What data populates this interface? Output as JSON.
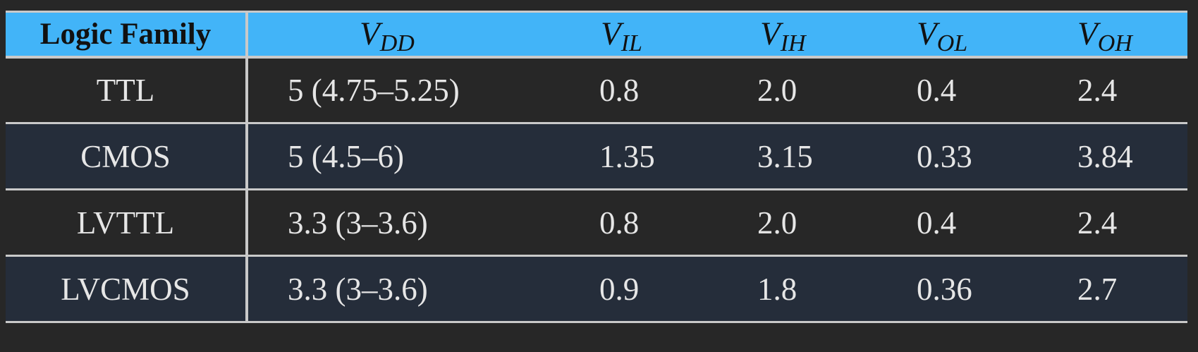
{
  "table": {
    "header": {
      "family": "Logic Family",
      "columns": [
        {
          "main": "V",
          "sub": "DD"
        },
        {
          "main": "V",
          "sub": "IL"
        },
        {
          "main": "V",
          "sub": "IH"
        },
        {
          "main": "V",
          "sub": "OL"
        },
        {
          "main": "V",
          "sub": "OH"
        }
      ]
    },
    "rows": [
      {
        "family": "TTL",
        "vdd": "5 (4.75–5.25)",
        "vil": "0.8",
        "vih": "2.0",
        "vol": "0.4",
        "voh": "2.4"
      },
      {
        "family": "CMOS",
        "vdd": "5 (4.5–6)",
        "vil": "1.35",
        "vih": "3.15",
        "vol": "0.33",
        "voh": "3.84"
      },
      {
        "family": "LVTTL",
        "vdd": "3.3 (3–3.6)",
        "vil": "0.8",
        "vih": "2.0",
        "vol": "0.4",
        "voh": "2.4"
      },
      {
        "family": "LVCMOS",
        "vdd": "3.3 (3–3.6)",
        "vil": "0.9",
        "vih": "1.8",
        "vol": "0.36",
        "voh": "2.7"
      }
    ]
  },
  "colors": {
    "background": "#272727",
    "header": "#42b4f8",
    "row_alt": "#252d3a",
    "rule": "#c9c9c9",
    "text": "#e6e6e6"
  }
}
